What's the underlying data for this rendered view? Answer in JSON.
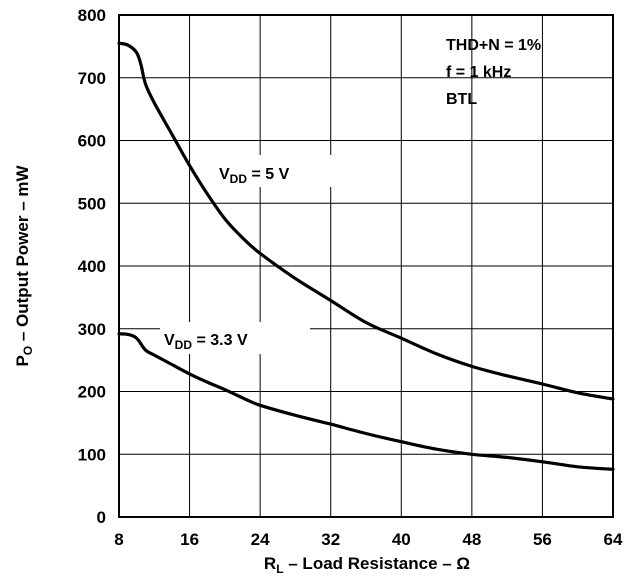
{
  "chart_data": {
    "type": "line",
    "xlabel": {
      "main": "R",
      "sub": "L",
      "rest": " – Load Resistance – Ω"
    },
    "ylabel": {
      "main": "P",
      "sub": "O",
      "rest": " – Output Power – mW"
    },
    "xlim": [
      8,
      64
    ],
    "ylim": [
      0,
      800
    ],
    "xticks": [
      8,
      16,
      24,
      32,
      40,
      48,
      56,
      64
    ],
    "yticks": [
      0,
      100,
      200,
      300,
      400,
      500,
      600,
      700,
      800
    ],
    "grid": true,
    "conditions": [
      "THD+N = 1%",
      "f = 1 kHz",
      "BTL"
    ],
    "series": [
      {
        "name": {
          "main": "V",
          "sub": "DD",
          "rest": " = 5 V"
        },
        "x": [
          8,
          9,
          10,
          10.5,
          11,
          12,
          14,
          16,
          18,
          20,
          22,
          24,
          28,
          32,
          36,
          40,
          44,
          48,
          52,
          56,
          60,
          64
        ],
        "y": [
          755,
          752,
          740,
          720,
          690,
          660,
          610,
          560,
          515,
          475,
          445,
          420,
          380,
          345,
          310,
          285,
          260,
          240,
          225,
          212,
          198,
          188
        ]
      },
      {
        "name": {
          "main": "V",
          "sub": "DD",
          "rest": " = 3.3 V"
        },
        "x": [
          8,
          9,
          10,
          11,
          12,
          14,
          16,
          18,
          20,
          22,
          24,
          28,
          32,
          36,
          40,
          44,
          48,
          52,
          56,
          60,
          64
        ],
        "y": [
          292,
          291,
          285,
          266,
          258,
          243,
          228,
          215,
          203,
          190,
          178,
          162,
          148,
          133,
          120,
          108,
          100,
          95,
          88,
          80,
          76
        ]
      }
    ]
  }
}
